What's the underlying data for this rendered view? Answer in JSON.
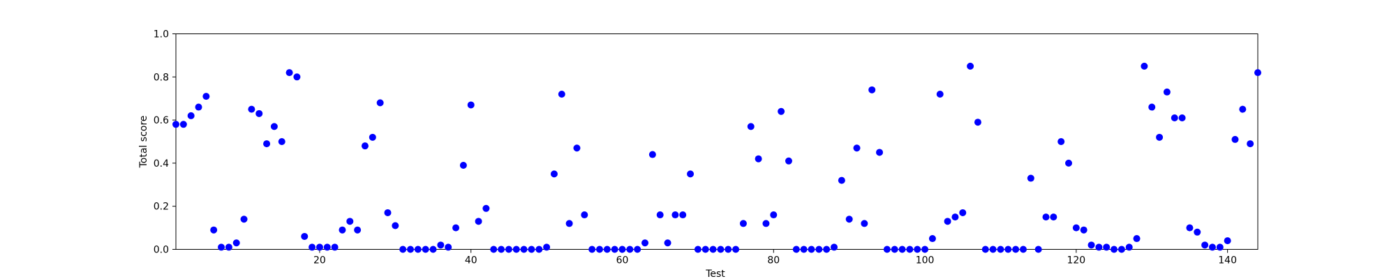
{
  "chart_data": {
    "type": "scatter",
    "xlabel": "Test",
    "ylabel": "Total score",
    "xlim": [
      1,
      144
    ],
    "ylim": [
      0.0,
      1.0
    ],
    "xticks": [
      20,
      40,
      60,
      80,
      100,
      120,
      140
    ],
    "xtick_labels": [
      "20",
      "40",
      "60",
      "80",
      "100",
      "120",
      "140"
    ],
    "yticks": [
      0.0,
      0.2,
      0.4,
      0.6,
      0.8,
      1.0
    ],
    "ytick_labels": [
      "0.0",
      "0.2",
      "0.4",
      "0.6",
      "0.8",
      "1.0"
    ],
    "grid": false,
    "marker_color": "#0000ff",
    "series": [
      {
        "x": [
          1,
          2,
          3,
          4,
          5,
          6,
          7,
          8,
          9,
          10,
          11,
          12,
          13,
          14,
          15,
          16,
          17,
          18,
          19,
          20,
          21,
          22,
          23,
          24,
          25,
          26,
          27,
          28,
          29,
          30,
          31,
          32,
          33,
          34,
          35,
          36,
          37,
          38,
          39,
          40,
          41,
          42,
          43,
          44,
          45,
          46,
          47,
          48,
          49,
          50,
          51,
          52,
          53,
          54,
          55,
          56,
          57,
          58,
          59,
          60,
          61,
          62,
          63,
          64,
          65,
          66,
          67,
          68,
          69,
          70,
          71,
          72,
          73,
          74,
          75,
          76,
          77,
          78,
          79,
          80,
          81,
          82,
          83,
          84,
          85,
          86,
          87,
          88,
          89,
          90,
          91,
          92,
          93,
          94,
          95,
          96,
          97,
          98,
          99,
          100,
          101,
          102,
          103,
          104,
          105,
          106,
          107,
          108,
          109,
          110,
          111,
          112,
          113,
          114,
          115,
          116,
          117,
          118,
          119,
          120,
          121,
          122,
          123,
          124,
          125,
          126,
          127,
          128,
          129,
          130,
          131,
          132,
          133,
          134,
          135,
          136,
          137,
          138,
          139,
          140,
          141,
          142,
          143,
          144
        ],
        "y": [
          0.58,
          0.58,
          0.62,
          0.66,
          0.71,
          0.09,
          0.01,
          0.01,
          0.03,
          0.14,
          0.65,
          0.63,
          0.49,
          0.57,
          0.5,
          0.82,
          0.8,
          0.06,
          0.01,
          0.01,
          0.01,
          0.01,
          0.09,
          0.13,
          0.09,
          0.48,
          0.52,
          0.68,
          0.17,
          0.11,
          0.0,
          0.0,
          0.0,
          0.0,
          0.0,
          0.02,
          0.01,
          0.1,
          0.39,
          0.67,
          0.13,
          0.19,
          0.0,
          0.0,
          0.0,
          0.0,
          0.0,
          0.0,
          0.0,
          0.01,
          0.35,
          0.72,
          0.12,
          0.47,
          0.16,
          0.0,
          0.0,
          0.0,
          0.0,
          0.0,
          0.0,
          0.0,
          0.03,
          0.44,
          0.16,
          0.03,
          0.16,
          0.16,
          0.35,
          0.0,
          0.0,
          0.0,
          0.0,
          0.0,
          0.0,
          0.12,
          0.57,
          0.42,
          0.12,
          0.16,
          0.64,
          0.41,
          0.0,
          0.0,
          0.0,
          0.0,
          0.0,
          0.01,
          0.32,
          0.14,
          0.47,
          0.12,
          0.74,
          0.45,
          0.0,
          0.0,
          0.0,
          0.0,
          0.0,
          0.0,
          0.05,
          0.72,
          0.13,
          0.15,
          0.17,
          0.85,
          0.59,
          0.0,
          0.0,
          0.0,
          0.0,
          0.0,
          0.0,
          0.33,
          0.0,
          0.15,
          0.15,
          0.5,
          0.4,
          0.1,
          0.09,
          0.02,
          0.01,
          0.01,
          0.0,
          0.0,
          0.01,
          0.05,
          0.85,
          0.66,
          0.52,
          0.73,
          0.61,
          0.61,
          0.1,
          0.08,
          0.02,
          0.01,
          0.01,
          0.04,
          0.51,
          0.65,
          0.49,
          0.82
        ]
      }
    ]
  }
}
